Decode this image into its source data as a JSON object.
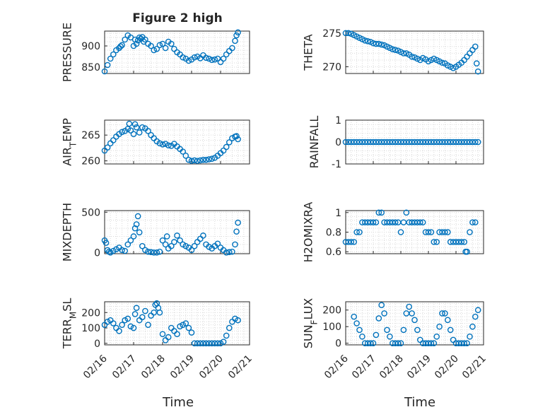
{
  "figure": {
    "title": "Figure 2 high",
    "colors": {
      "marker": "#0072BD",
      "axis": "#262626",
      "grid": "#d9d9d9"
    }
  },
  "chart_data": [
    {
      "type": "scatter",
      "ylabel": "PRESSURE",
      "xlabel": "",
      "xlim": [
        0,
        5
      ],
      "ylim": [
        835,
        935
      ],
      "yticks": [
        850,
        900
      ],
      "ytick_labels": [
        "850",
        "900"
      ],
      "xtick_labels": [],
      "x": [
        0.0,
        0.1,
        0.2,
        0.3,
        0.4,
        0.5,
        0.55,
        0.6,
        0.7,
        0.8,
        0.9,
        1.0,
        1.05,
        1.1,
        1.15,
        1.2,
        1.25,
        1.3,
        1.35,
        1.4,
        1.5,
        1.6,
        1.7,
        1.8,
        1.9,
        2.0,
        2.1,
        2.2,
        2.3,
        2.4,
        2.5,
        2.6,
        2.7,
        2.8,
        2.9,
        3.0,
        3.1,
        3.2,
        3.3,
        3.4,
        3.5,
        3.6,
        3.7,
        3.8,
        3.9,
        4.0,
        4.1,
        4.2,
        4.3,
        4.4,
        4.5,
        4.55,
        4.6
      ],
      "y": [
        840,
        855,
        870,
        880,
        890,
        895,
        899,
        902,
        915,
        925,
        920,
        900,
        915,
        905,
        913,
        920,
        917,
        921,
        910,
        915,
        905,
        900,
        890,
        893,
        902,
        905,
        895,
        910,
        905,
        893,
        885,
        880,
        873,
        870,
        865,
        868,
        873,
        875,
        871,
        878,
        872,
        870,
        867,
        868,
        870,
        862,
        870,
        880,
        888,
        895,
        912,
        925,
        932
      ]
    },
    {
      "type": "scatter",
      "ylabel": "THETA",
      "xlabel": "",
      "xlim": [
        0,
        5
      ],
      "ylim": [
        269,
        275.3
      ],
      "yticks": [
        270,
        275
      ],
      "ytick_labels": [
        "270",
        "275"
      ],
      "xtick_labels": [],
      "x": [
        0.0,
        0.1,
        0.2,
        0.3,
        0.4,
        0.5,
        0.6,
        0.7,
        0.8,
        0.9,
        1.0,
        1.1,
        1.2,
        1.3,
        1.4,
        1.5,
        1.6,
        1.7,
        1.8,
        1.9,
        2.0,
        2.1,
        2.2,
        2.3,
        2.4,
        2.5,
        2.6,
        2.7,
        2.8,
        2.9,
        3.0,
        3.1,
        3.2,
        3.3,
        3.4,
        3.5,
        3.6,
        3.7,
        3.8,
        3.9,
        4.0,
        4.1,
        4.2,
        4.3,
        4.4,
        4.5,
        4.6,
        4.7,
        4.75,
        4.8
      ],
      "y": [
        275.0,
        275.0,
        274.9,
        274.7,
        274.5,
        274.3,
        274.1,
        273.9,
        273.8,
        273.7,
        273.5,
        273.4,
        273.4,
        273.3,
        273.2,
        273.0,
        272.8,
        272.6,
        272.5,
        272.4,
        272.2,
        272.0,
        272.0,
        271.8,
        271.5,
        271.4,
        271.2,
        271.0,
        271.3,
        271.1,
        270.8,
        271.0,
        271.2,
        271.0,
        270.8,
        270.6,
        270.5,
        270.2,
        270.0,
        269.8,
        270.0,
        270.3,
        270.6,
        271.0,
        271.5,
        272.0,
        272.5,
        273.0,
        270.5,
        269.3
      ]
    },
    {
      "type": "scatter",
      "ylabel": "AIR_TEMP",
      "xlabel": "",
      "xlim": [
        0,
        5
      ],
      "ylim": [
        259.4,
        267.9
      ],
      "yticks": [
        260,
        265
      ],
      "ytick_labels": [
        "260",
        "265"
      ],
      "xtick_labels": [],
      "x": [
        0.0,
        0.1,
        0.2,
        0.3,
        0.4,
        0.5,
        0.6,
        0.7,
        0.8,
        0.85,
        0.9,
        1.0,
        1.05,
        1.1,
        1.2,
        1.3,
        1.4,
        1.5,
        1.6,
        1.7,
        1.8,
        1.9,
        2.0,
        2.1,
        2.2,
        2.3,
        2.4,
        2.5,
        2.6,
        2.7,
        2.8,
        2.9,
        3.0,
        3.1,
        3.2,
        3.3,
        3.4,
        3.5,
        3.6,
        3.7,
        3.8,
        3.9,
        4.0,
        4.1,
        4.2,
        4.3,
        4.4,
        4.5,
        4.55,
        4.6
      ],
      "y": [
        262.0,
        262.6,
        263.4,
        264.0,
        264.7,
        265.2,
        265.6,
        265.8,
        266.2,
        267.2,
        265.9,
        265.2,
        267.1,
        266.5,
        265.5,
        266.5,
        266.3,
        265.8,
        265.0,
        264.4,
        263.8,
        263.4,
        263.2,
        263.3,
        263.0,
        262.9,
        263.3,
        262.8,
        262.3,
        261.8,
        261.0,
        260.2,
        260.0,
        260.1,
        260.0,
        260.1,
        260.2,
        260.2,
        260.3,
        260.4,
        260.6,
        261.0,
        261.5,
        262.0,
        262.7,
        263.6,
        264.4,
        264.7,
        264.8,
        264.2
      ]
    },
    {
      "type": "scatter",
      "ylabel": "RAINFALL",
      "xlabel": "",
      "xlim": [
        0,
        5
      ],
      "ylim": [
        -1,
        1
      ],
      "yticks": [
        -1,
        0,
        1
      ],
      "ytick_labels": [
        "-1",
        "0",
        "1"
      ],
      "xtick_labels": [],
      "x": [
        0.0,
        0.1,
        0.2,
        0.3,
        0.4,
        0.5,
        0.6,
        0.7,
        0.8,
        0.9,
        1.0,
        1.1,
        1.2,
        1.3,
        1.4,
        1.5,
        1.6,
        1.7,
        1.8,
        1.9,
        2.0,
        2.1,
        2.2,
        2.3,
        2.4,
        2.5,
        2.6,
        2.7,
        2.8,
        2.9,
        3.0,
        3.1,
        3.2,
        3.3,
        3.4,
        3.5,
        3.6,
        3.7,
        3.8,
        3.9,
        4.0,
        4.1,
        4.2,
        4.3,
        4.4,
        4.5,
        4.6,
        4.7,
        4.8
      ],
      "y": [
        0,
        0,
        0,
        0,
        0,
        0,
        0,
        0,
        0,
        0,
        0,
        0,
        0,
        0,
        0,
        0,
        0,
        0,
        0,
        0,
        0,
        0,
        0,
        0,
        0,
        0,
        0,
        0,
        0,
        0,
        0,
        0,
        0,
        0,
        0,
        0,
        0,
        0,
        0,
        0,
        0,
        0,
        0,
        0,
        0,
        0,
        0,
        0,
        0
      ]
    },
    {
      "type": "scatter",
      "ylabel": "MIXDEPTH",
      "xlabel": "",
      "xlim": [
        0,
        5
      ],
      "ylim": [
        -15,
        520
      ],
      "yticks": [
        0,
        500
      ],
      "ytick_labels": [
        "0",
        "500"
      ],
      "xtick_labels": [],
      "x": [
        0.0,
        0.05,
        0.1,
        0.15,
        0.2,
        0.3,
        0.4,
        0.5,
        0.6,
        0.7,
        0.8,
        0.9,
        1.0,
        1.05,
        1.1,
        1.15,
        1.2,
        1.3,
        1.4,
        1.5,
        1.6,
        1.7,
        1.8,
        1.9,
        2.0,
        2.1,
        2.15,
        2.2,
        2.3,
        2.4,
        2.5,
        2.6,
        2.7,
        2.8,
        2.9,
        3.0,
        3.1,
        3.2,
        3.3,
        3.4,
        3.5,
        3.6,
        3.7,
        3.8,
        3.9,
        4.0,
        4.1,
        4.2,
        4.3,
        4.4,
        4.5,
        4.55,
        4.6
      ],
      "y": [
        150,
        120,
        30,
        10,
        0,
        20,
        40,
        60,
        30,
        20,
        100,
        150,
        200,
        300,
        350,
        450,
        250,
        80,
        30,
        10,
        5,
        0,
        0,
        10,
        150,
        100,
        200,
        50,
        80,
        130,
        210,
        150,
        100,
        80,
        60,
        30,
        80,
        130,
        170,
        210,
        100,
        70,
        50,
        80,
        110,
        60,
        30,
        0,
        5,
        10,
        100,
        260,
        370
      ]
    },
    {
      "type": "scatter",
      "ylabel": "H2OMIXRA",
      "xlabel": "",
      "xlim": [
        0,
        5
      ],
      "ylim": [
        0.58,
        1.02
      ],
      "yticks": [
        0.6,
        0.8,
        1.0
      ],
      "ytick_labels": [
        "0.6",
        "0.8",
        "1"
      ],
      "xtick_labels": [],
      "x": [
        0.0,
        0.1,
        0.2,
        0.3,
        0.4,
        0.5,
        0.6,
        0.7,
        0.8,
        0.9,
        1.0,
        1.1,
        1.2,
        1.3,
        1.4,
        1.5,
        1.6,
        1.7,
        1.8,
        1.9,
        2.0,
        2.1,
        2.2,
        2.3,
        2.4,
        2.5,
        2.6,
        2.7,
        2.8,
        2.9,
        3.0,
        3.1,
        3.2,
        3.3,
        3.4,
        3.5,
        3.6,
        3.7,
        3.8,
        3.9,
        4.0,
        4.1,
        4.2,
        4.3,
        4.35,
        4.4,
        4.5,
        4.6,
        4.7
      ],
      "y": [
        0.7,
        0.7,
        0.7,
        0.7,
        0.8,
        0.8,
        0.9,
        0.9,
        0.9,
        0.9,
        0.9,
        0.9,
        1.0,
        1.0,
        0.9,
        0.9,
        0.9,
        0.9,
        0.9,
        0.9,
        0.8,
        0.9,
        1.0,
        0.9,
        0.9,
        0.9,
        0.9,
        0.9,
        0.9,
        0.8,
        0.8,
        0.8,
        0.7,
        0.7,
        0.8,
        0.8,
        0.8,
        0.8,
        0.7,
        0.7,
        0.7,
        0.7,
        0.7,
        0.7,
        0.6,
        0.6,
        0.8,
        0.9,
        0.9
      ]
    },
    {
      "type": "scatter",
      "ylabel": "TERR_MSL",
      "xlabel": "Time",
      "xlim": [
        0,
        5
      ],
      "ylim": [
        -10,
        270
      ],
      "yticks": [
        0,
        100,
        200
      ],
      "ytick_labels": [
        "0",
        "100",
        "200"
      ],
      "xticks": [
        0,
        1,
        2,
        3,
        4,
        5
      ],
      "xtick_labels": [
        "02/16",
        "02/17",
        "02/18",
        "02/19",
        "02/20",
        "02/21"
      ],
      "x": [
        0.0,
        0.1,
        0.2,
        0.3,
        0.4,
        0.5,
        0.6,
        0.7,
        0.8,
        0.9,
        1.0,
        1.05,
        1.1,
        1.2,
        1.3,
        1.4,
        1.5,
        1.6,
        1.7,
        1.75,
        1.8,
        1.85,
        1.9,
        2.0,
        2.1,
        2.2,
        2.3,
        2.4,
        2.5,
        2.6,
        2.7,
        2.8,
        2.9,
        3.0,
        3.1,
        3.2,
        3.3,
        3.4,
        3.5,
        3.6,
        3.7,
        3.8,
        3.9,
        4.0,
        4.1,
        4.2,
        4.3,
        4.4,
        4.5,
        4.6
      ],
      "y": [
        120,
        140,
        150,
        130,
        100,
        80,
        120,
        150,
        160,
        110,
        100,
        190,
        230,
        150,
        170,
        210,
        120,
        180,
        200,
        250,
        260,
        230,
        200,
        60,
        20,
        40,
        100,
        80,
        60,
        110,
        120,
        130,
        100,
        70,
        0,
        0,
        0,
        0,
        0,
        0,
        0,
        0,
        0,
        0,
        10,
        50,
        100,
        140,
        160,
        150
      ]
    },
    {
      "type": "scatter",
      "ylabel": "SUN_FLUX",
      "xlabel": "Time",
      "xlim": [
        0,
        5
      ],
      "ylim": [
        -10,
        250
      ],
      "yticks": [
        0,
        100,
        200
      ],
      "ytick_labels": [
        "0",
        "100",
        "200"
      ],
      "xticks": [
        0,
        1,
        2,
        3,
        4,
        5
      ],
      "xtick_labels": [
        "02/16",
        "02/17",
        "02/18",
        "02/19",
        "02/20",
        "02/21"
      ],
      "x": [
        0.3,
        0.4,
        0.5,
        0.6,
        0.7,
        0.8,
        0.9,
        1.0,
        1.1,
        1.2,
        1.3,
        1.4,
        1.5,
        1.6,
        1.7,
        1.8,
        1.9,
        2.0,
        2.1,
        2.2,
        2.3,
        2.4,
        2.5,
        2.6,
        2.7,
        2.8,
        2.9,
        3.0,
        3.1,
        3.2,
        3.3,
        3.4,
        3.5,
        3.6,
        3.7,
        3.8,
        3.9,
        4.0,
        4.1,
        4.2,
        4.3,
        4.4,
        4.5,
        4.6,
        4.7,
        4.8
      ],
      "y": [
        160,
        120,
        80,
        40,
        0,
        0,
        0,
        0,
        50,
        150,
        230,
        180,
        80,
        40,
        0,
        0,
        0,
        0,
        80,
        180,
        220,
        180,
        140,
        80,
        20,
        0,
        0,
        0,
        0,
        0,
        40,
        100,
        180,
        180,
        140,
        80,
        20,
        0,
        0,
        0,
        0,
        0,
        40,
        100,
        160,
        200
      ]
    }
  ]
}
